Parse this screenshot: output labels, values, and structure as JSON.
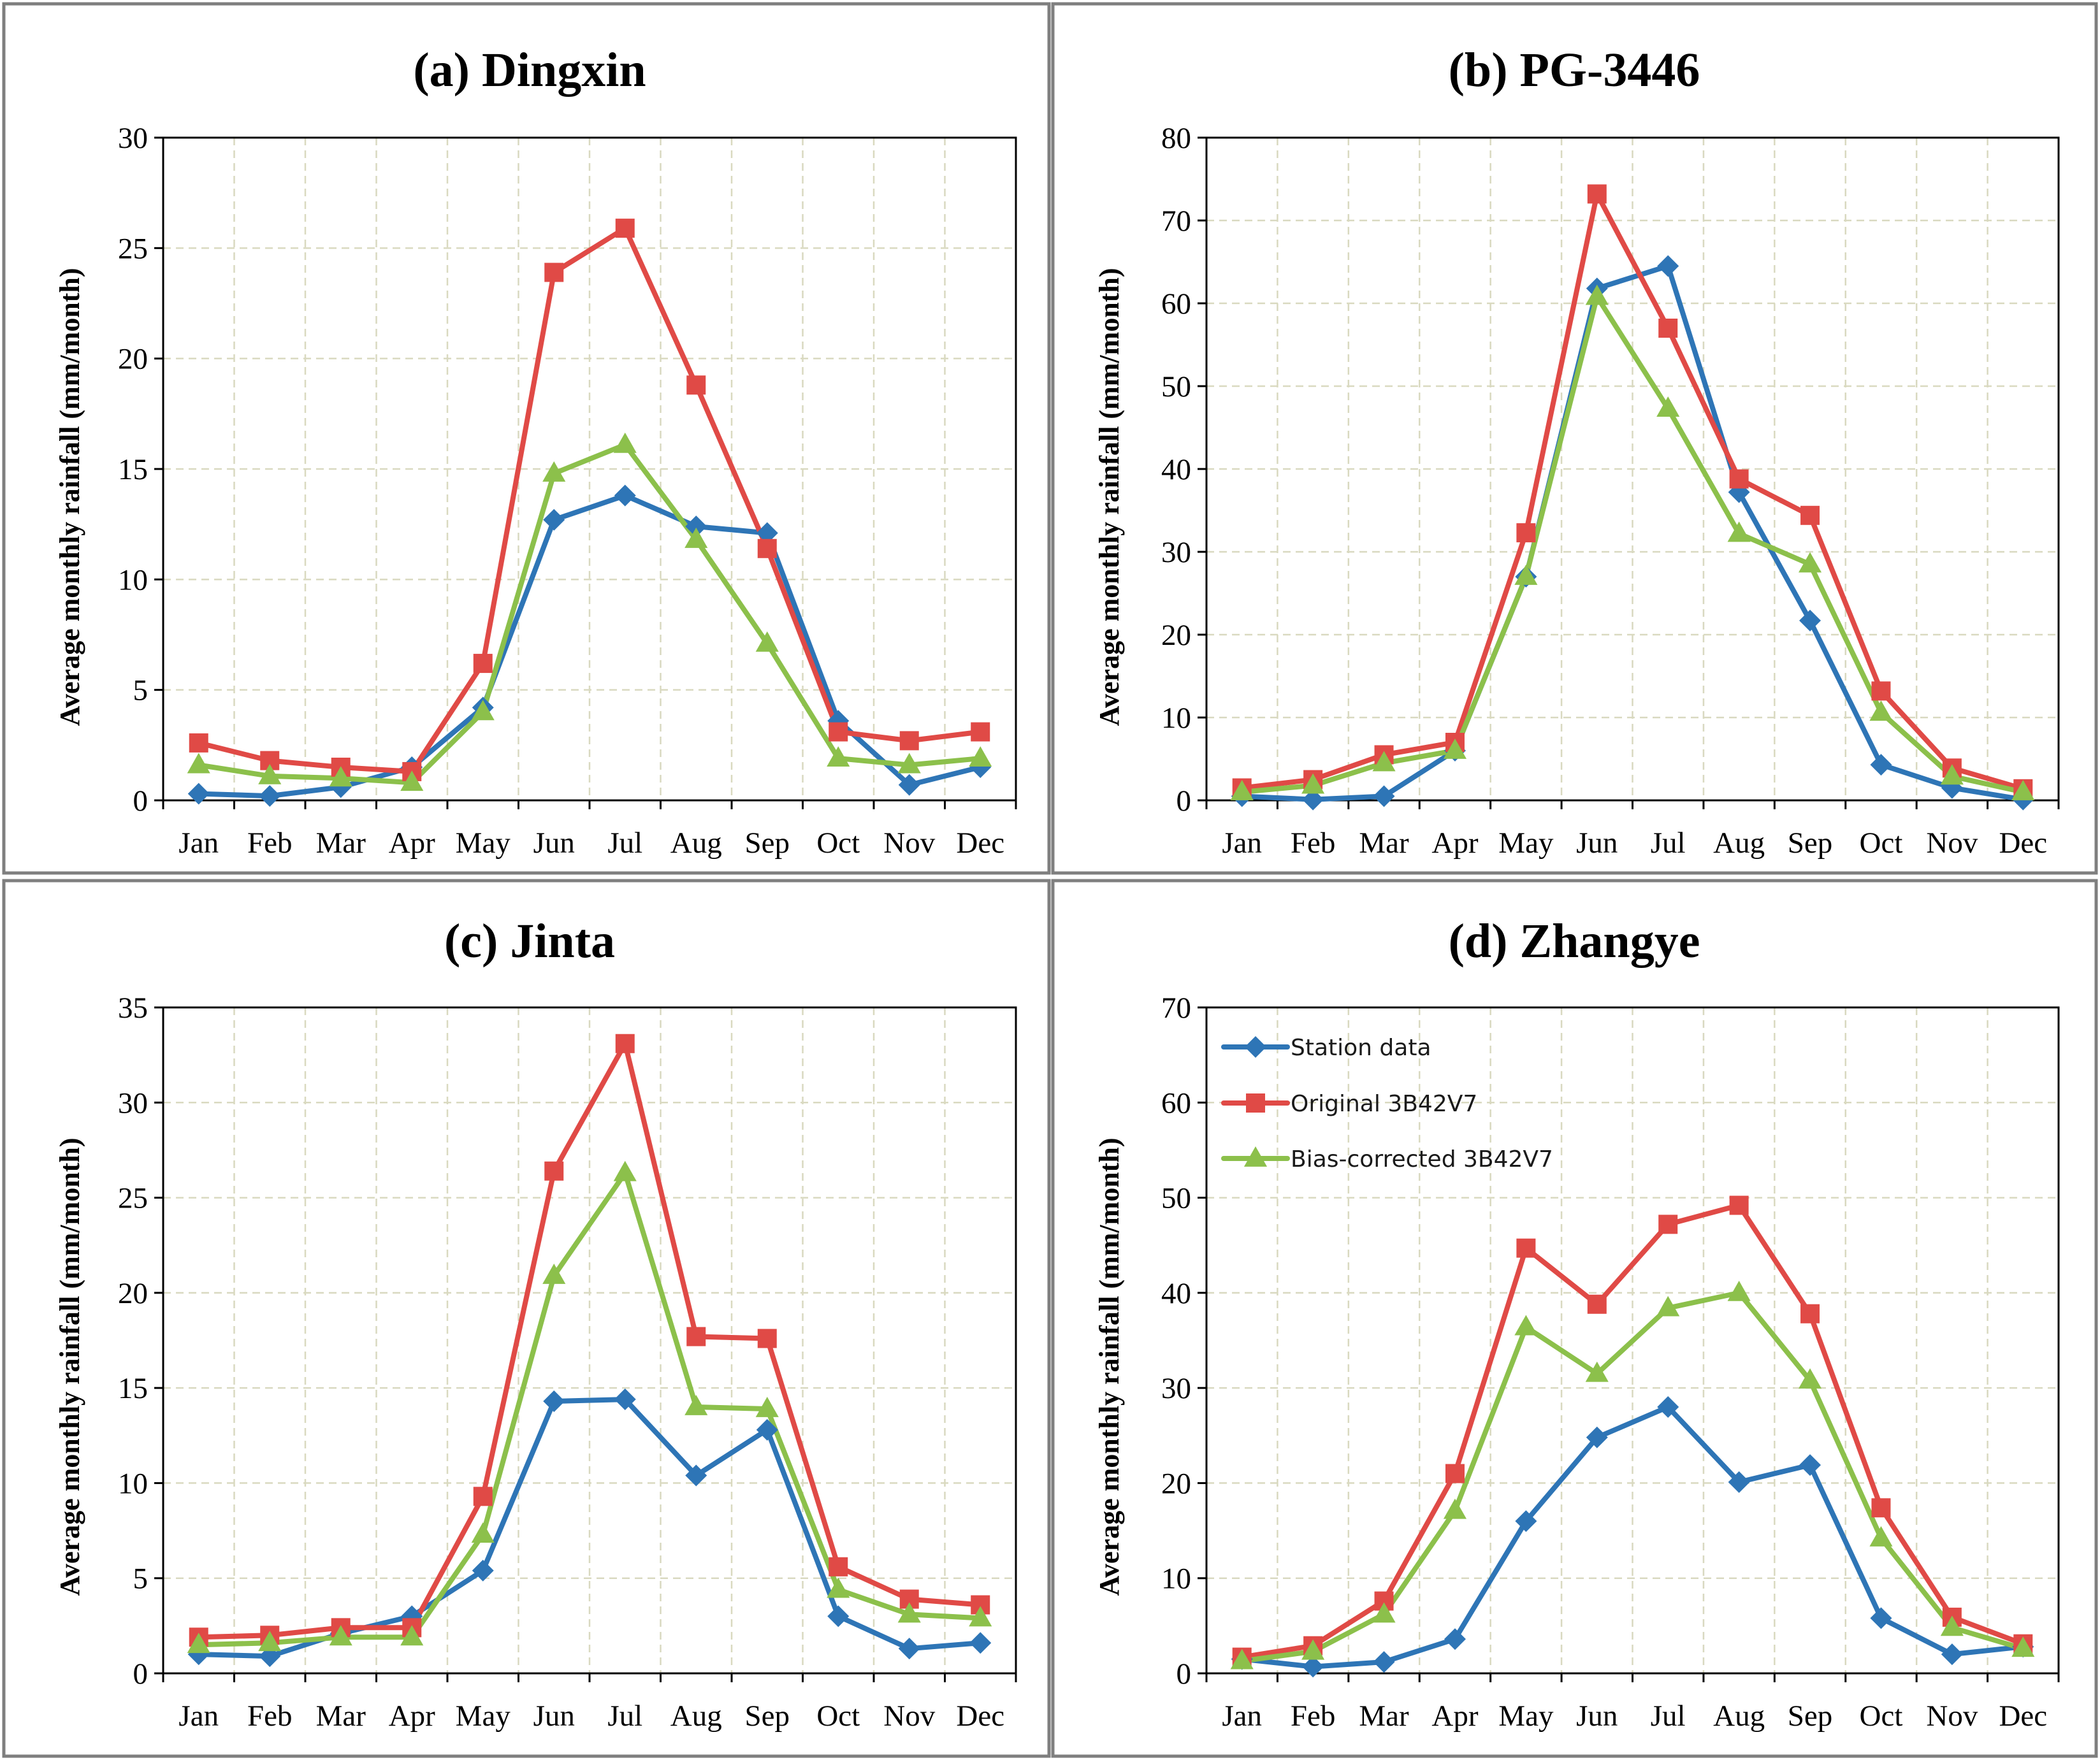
{
  "legend": [
    {
      "name": "Station data",
      "color": "#2e75b6",
      "marker": "diamond"
    },
    {
      "name": "Original 3B42V7",
      "color": "#e04a46",
      "marker": "square"
    },
    {
      "name": "Bias-corrected 3B42V7",
      "color": "#8cc04b",
      "marker": "triangle"
    }
  ],
  "chart_data": [
    {
      "type": "line",
      "title": "(a) Dingxin",
      "ylabel": "Average monthly rainfall (mm/month)",
      "xlabel": "",
      "categories": [
        "Jan",
        "Feb",
        "Mar",
        "Apr",
        "May",
        "Jun",
        "Jul",
        "Aug",
        "Sep",
        "Oct",
        "Nov",
        "Dec"
      ],
      "ylim": [
        0,
        30
      ],
      "yticks": [
        0,
        5,
        10,
        15,
        20,
        25,
        30
      ],
      "grid": true,
      "series": [
        {
          "name": "Station data",
          "values": [
            0.3,
            0.2,
            0.6,
            1.5,
            4.2,
            12.7,
            13.8,
            12.4,
            12.1,
            3.6,
            0.7,
            1.5
          ]
        },
        {
          "name": "Original 3B42V7",
          "values": [
            2.6,
            1.8,
            1.5,
            1.3,
            6.2,
            23.9,
            25.9,
            18.8,
            11.4,
            3.1,
            2.7,
            3.1
          ]
        },
        {
          "name": "Bias-corrected 3B42V7",
          "values": [
            1.6,
            1.1,
            1.0,
            0.8,
            4.0,
            14.8,
            16.1,
            11.8,
            7.1,
            1.9,
            1.6,
            1.9
          ]
        }
      ]
    },
    {
      "type": "line",
      "title": "(b) PG-3446",
      "ylabel": "Average monthly rainfall (mm/month)",
      "xlabel": "",
      "categories": [
        "Jan",
        "Feb",
        "Mar",
        "Apr",
        "May",
        "Jun",
        "Jul",
        "Aug",
        "Sep",
        "Oct",
        "Nov",
        "Dec"
      ],
      "ylim": [
        0,
        80
      ],
      "yticks": [
        0,
        10,
        20,
        30,
        40,
        50,
        60,
        70,
        80
      ],
      "grid": true,
      "series": [
        {
          "name": "Station data",
          "values": [
            0.5,
            0.1,
            0.5,
            6.0,
            27.0,
            61.8,
            64.5,
            37.2,
            21.7,
            4.3,
            1.5,
            0.1
          ]
        },
        {
          "name": "Original 3B42V7",
          "values": [
            1.5,
            2.5,
            5.5,
            7.0,
            32.3,
            73.2,
            57.0,
            38.8,
            34.4,
            13.2,
            3.9,
            1.4
          ]
        },
        {
          "name": "Bias-corrected 3B42V7",
          "values": [
            1.0,
            1.8,
            4.5,
            6.0,
            27.0,
            60.8,
            47.3,
            32.2,
            28.5,
            10.6,
            2.9,
            1.0
          ]
        }
      ]
    },
    {
      "type": "line",
      "title": "(c) Jinta",
      "ylabel": "Average monthly rainfall (mm/month)",
      "xlabel": "",
      "categories": [
        "Jan",
        "Feb",
        "Mar",
        "Apr",
        "May",
        "Jun",
        "Jul",
        "Aug",
        "Sep",
        "Oct",
        "Nov",
        "Dec"
      ],
      "ylim": [
        0,
        35
      ],
      "yticks": [
        0,
        5,
        10,
        15,
        20,
        25,
        30,
        35
      ],
      "grid": true,
      "series": [
        {
          "name": "Station data",
          "values": [
            1.0,
            0.9,
            2.1,
            3.0,
            5.4,
            14.3,
            14.4,
            10.4,
            12.8,
            3.0,
            1.3,
            1.6
          ]
        },
        {
          "name": "Original 3B42V7",
          "values": [
            1.9,
            2.0,
            2.4,
            2.4,
            9.3,
            26.4,
            33.1,
            17.7,
            17.6,
            5.6,
            3.9,
            3.6
          ]
        },
        {
          "name": "Bias-corrected 3B42V7",
          "values": [
            1.5,
            1.6,
            1.9,
            1.9,
            7.3,
            20.9,
            26.3,
            14.0,
            13.9,
            4.4,
            3.1,
            2.9
          ]
        }
      ]
    },
    {
      "type": "line",
      "title": "(d) Zhangye",
      "ylabel": "Average monthly rainfall (mm/month)",
      "xlabel": "",
      "categories": [
        "Jan",
        "Feb",
        "Mar",
        "Apr",
        "May",
        "Jun",
        "Jul",
        "Aug",
        "Sep",
        "Oct",
        "Nov",
        "Dec"
      ],
      "ylim": [
        0,
        70
      ],
      "yticks": [
        0,
        10,
        20,
        30,
        40,
        50,
        60,
        70
      ],
      "grid": true,
      "legend_position": "top-left",
      "series": [
        {
          "name": "Station data",
          "values": [
            1.5,
            0.7,
            1.2,
            3.6,
            16.0,
            24.8,
            28.0,
            20.1,
            21.9,
            5.8,
            2.0,
            2.8
          ]
        },
        {
          "name": "Original 3B42V7",
          "values": [
            1.7,
            2.9,
            7.6,
            21.0,
            44.7,
            38.8,
            47.2,
            49.2,
            37.8,
            17.4,
            5.9,
            3.1
          ]
        },
        {
          "name": "Bias-corrected 3B42V7",
          "values": [
            1.3,
            2.3,
            6.2,
            17.1,
            36.4,
            31.5,
            38.4,
            40.0,
            30.8,
            14.2,
            4.8,
            2.6
          ]
        }
      ]
    }
  ]
}
